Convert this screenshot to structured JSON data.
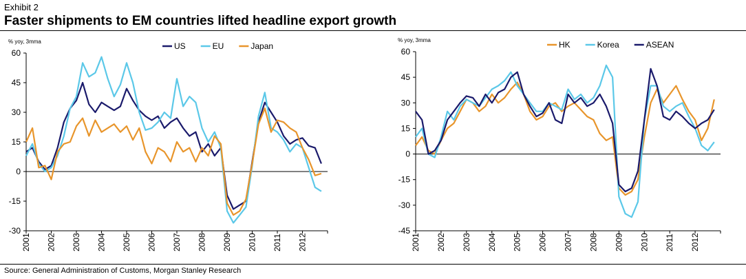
{
  "header": {
    "exhibit": "Exhibit 2",
    "title": "Faster shipments to EM countries lifted headline export growth"
  },
  "footer": {
    "source": "Source: General Administration of Customs, Morgan Stanley Research"
  },
  "chart_data": [
    {
      "type": "line",
      "ylabel": "% yoy, 3mma",
      "ylim": [
        -30,
        60
      ],
      "yticks": [
        -30,
        -15,
        0,
        15,
        30,
        45,
        60
      ],
      "xlim": [
        2001,
        2013
      ],
      "xticks": [
        2001,
        2002,
        2003,
        2004,
        2005,
        2006,
        2007,
        2008,
        2009,
        2010,
        2011,
        2012
      ],
      "grid": false,
      "legend": "top-center",
      "series": [
        {
          "name": "US",
          "color": "#1a1a6b",
          "x": [
            2001.0,
            2001.25,
            2001.5,
            2001.75,
            2002.0,
            2002.25,
            2002.5,
            2002.75,
            2003.0,
            2003.25,
            2003.5,
            2003.75,
            2004.0,
            2004.25,
            2004.5,
            2004.75,
            2005.0,
            2005.25,
            2005.5,
            2005.75,
            2006.0,
            2006.25,
            2006.5,
            2006.75,
            2007.0,
            2007.25,
            2007.5,
            2007.75,
            2008.0,
            2008.25,
            2008.5,
            2008.75,
            2009.0,
            2009.25,
            2009.5,
            2009.75,
            2010.0,
            2010.25,
            2010.5,
            2010.75,
            2011.0,
            2011.25,
            2011.5,
            2011.75,
            2012.0,
            2012.25,
            2012.5,
            2012.75
          ],
          "values": [
            10,
            12,
            5,
            1,
            3,
            12,
            25,
            32,
            36,
            45,
            34,
            30,
            35,
            33,
            31,
            33,
            42,
            36,
            31,
            28,
            26,
            28,
            22,
            25,
            27,
            22,
            18,
            20,
            10,
            14,
            8,
            12,
            -12,
            -19,
            -17,
            -15,
            5,
            25,
            35,
            30,
            25,
            18,
            14,
            16,
            17,
            13,
            12,
            4
          ]
        },
        {
          "name": "EU",
          "color": "#5bc8e8",
          "x": [
            2001.0,
            2001.25,
            2001.5,
            2001.75,
            2002.0,
            2002.25,
            2002.5,
            2002.75,
            2003.0,
            2003.25,
            2003.5,
            2003.75,
            2004.0,
            2004.25,
            2004.5,
            2004.75,
            2005.0,
            2005.25,
            2005.5,
            2005.75,
            2006.0,
            2006.25,
            2006.5,
            2006.75,
            2007.0,
            2007.25,
            2007.5,
            2007.75,
            2008.0,
            2008.25,
            2008.5,
            2008.75,
            2009.0,
            2009.25,
            2009.5,
            2009.75,
            2010.0,
            2010.25,
            2010.5,
            2010.75,
            2011.0,
            2011.25,
            2011.5,
            2011.75,
            2012.0,
            2012.25,
            2012.5,
            2012.75
          ],
          "values": [
            8,
            14,
            4,
            0,
            2,
            8,
            18,
            32,
            38,
            55,
            48,
            50,
            58,
            47,
            38,
            44,
            55,
            45,
            30,
            21,
            22,
            25,
            30,
            27,
            47,
            33,
            38,
            35,
            22,
            15,
            20,
            12,
            -20,
            -26,
            -22,
            -18,
            3,
            28,
            40,
            22,
            20,
            16,
            10,
            14,
            12,
            2,
            -8,
            -10
          ]
        },
        {
          "name": "Japan",
          "color": "#e8952b",
          "x": [
            2001.0,
            2001.25,
            2001.5,
            2001.75,
            2002.0,
            2002.25,
            2002.5,
            2002.75,
            2003.0,
            2003.25,
            2003.5,
            2003.75,
            2004.0,
            2004.25,
            2004.5,
            2004.75,
            2005.0,
            2005.25,
            2005.5,
            2005.75,
            2006.0,
            2006.25,
            2006.5,
            2006.75,
            2007.0,
            2007.25,
            2007.5,
            2007.75,
            2008.0,
            2008.25,
            2008.5,
            2008.75,
            2009.0,
            2009.25,
            2009.5,
            2009.75,
            2010.0,
            2010.25,
            2010.5,
            2010.75,
            2011.0,
            2011.25,
            2011.5,
            2011.75,
            2012.0,
            2012.25,
            2012.5,
            2012.75
          ],
          "values": [
            15,
            22,
            2,
            3,
            -4,
            10,
            14,
            15,
            23,
            27,
            18,
            26,
            20,
            22,
            24,
            20,
            23,
            16,
            22,
            10,
            4,
            12,
            10,
            5,
            15,
            10,
            12,
            5,
            12,
            8,
            18,
            14,
            -16,
            -22,
            -20,
            -14,
            4,
            24,
            32,
            20,
            26,
            25,
            22,
            20,
            12,
            6,
            -2,
            -1
          ]
        }
      ]
    },
    {
      "type": "line",
      "ylabel": "% yoy, 3mma",
      "ylim": [
        -45,
        60
      ],
      "yticks": [
        -45,
        -30,
        -15,
        0,
        15,
        30,
        45,
        60
      ],
      "xlim": [
        2001,
        2013
      ],
      "xticks": [
        2001,
        2002,
        2003,
        2004,
        2005,
        2006,
        2007,
        2008,
        2009,
        2010,
        2011,
        2012
      ],
      "grid": false,
      "legend": "top-center",
      "series": [
        {
          "name": "HK",
          "color": "#e8952b",
          "x": [
            2001.0,
            2001.25,
            2001.5,
            2001.75,
            2002.0,
            2002.25,
            2002.5,
            2002.75,
            2003.0,
            2003.25,
            2003.5,
            2003.75,
            2004.0,
            2004.25,
            2004.5,
            2004.75,
            2005.0,
            2005.25,
            2005.5,
            2005.75,
            2006.0,
            2006.25,
            2006.5,
            2006.75,
            2007.0,
            2007.25,
            2007.5,
            2007.75,
            2008.0,
            2008.25,
            2008.5,
            2008.75,
            2009.0,
            2009.25,
            2009.5,
            2009.75,
            2010.0,
            2010.25,
            2010.5,
            2010.75,
            2011.0,
            2011.25,
            2011.5,
            2011.75,
            2012.0,
            2012.25,
            2012.5,
            2012.75
          ],
          "values": [
            5,
            10,
            2,
            0,
            8,
            15,
            18,
            25,
            32,
            30,
            25,
            28,
            35,
            30,
            33,
            38,
            42,
            35,
            25,
            20,
            22,
            28,
            30,
            25,
            28,
            30,
            26,
            22,
            20,
            12,
            8,
            10,
            -20,
            -24,
            -22,
            -15,
            10,
            30,
            38,
            30,
            35,
            40,
            32,
            25,
            20,
            8,
            15,
            32
          ]
        },
        {
          "name": "Korea",
          "color": "#5bc8e8",
          "x": [
            2001.0,
            2001.25,
            2001.5,
            2001.75,
            2002.0,
            2002.25,
            2002.5,
            2002.75,
            2003.0,
            2003.25,
            2003.5,
            2003.75,
            2004.0,
            2004.25,
            2004.5,
            2004.75,
            2005.0,
            2005.25,
            2005.5,
            2005.75,
            2006.0,
            2006.25,
            2006.5,
            2006.75,
            2007.0,
            2007.25,
            2007.5,
            2007.75,
            2008.0,
            2008.25,
            2008.5,
            2008.75,
            2009.0,
            2009.25,
            2009.5,
            2009.75,
            2010.0,
            2010.25,
            2010.5,
            2010.75,
            2011.0,
            2011.25,
            2011.5,
            2011.75,
            2012.0,
            2012.25,
            2012.5,
            2012.75
          ],
          "values": [
            10,
            15,
            0,
            -2,
            10,
            25,
            20,
            28,
            32,
            30,
            28,
            33,
            38,
            40,
            43,
            48,
            40,
            35,
            30,
            25,
            25,
            30,
            28,
            26,
            38,
            32,
            35,
            30,
            33,
            40,
            52,
            45,
            -25,
            -35,
            -37,
            -28,
            20,
            40,
            40,
            28,
            25,
            28,
            30,
            22,
            15,
            5,
            2,
            7
          ]
        },
        {
          "name": "ASEAN",
          "color": "#1a1a6b",
          "x": [
            2001.0,
            2001.25,
            2001.5,
            2001.75,
            2002.0,
            2002.25,
            2002.5,
            2002.75,
            2003.0,
            2003.25,
            2003.5,
            2003.75,
            2004.0,
            2004.25,
            2004.5,
            2004.75,
            2005.0,
            2005.25,
            2005.5,
            2005.75,
            2006.0,
            2006.25,
            2006.5,
            2006.75,
            2007.0,
            2007.25,
            2007.5,
            2007.75,
            2008.0,
            2008.25,
            2008.5,
            2008.75,
            2009.0,
            2009.25,
            2009.5,
            2009.75,
            2010.0,
            2010.25,
            2010.5,
            2010.75,
            2011.0,
            2011.25,
            2011.5,
            2011.75,
            2012.0,
            2012.25,
            2012.5,
            2012.75
          ],
          "values": [
            25,
            20,
            0,
            2,
            8,
            20,
            25,
            30,
            34,
            33,
            28,
            35,
            30,
            36,
            38,
            45,
            48,
            35,
            28,
            22,
            24,
            30,
            20,
            18,
            35,
            30,
            33,
            28,
            30,
            35,
            28,
            18,
            -18,
            -22,
            -20,
            -10,
            20,
            50,
            40,
            22,
            20,
            25,
            22,
            18,
            15,
            18,
            20,
            26
          ]
        }
      ]
    }
  ]
}
